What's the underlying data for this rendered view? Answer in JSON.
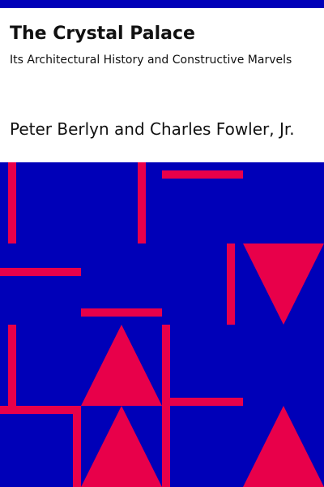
{
  "book": {
    "title": "The Crystal Palace",
    "subtitle": "Its Architectural History and Constructive Marvels",
    "author": "Peter Berlyn and Charles Fowler, Jr."
  },
  "colors": {
    "band": "#0000b8",
    "background": "#0000b8",
    "accent": "#e8004a",
    "panel": "#ffffff",
    "text": "#111111"
  }
}
